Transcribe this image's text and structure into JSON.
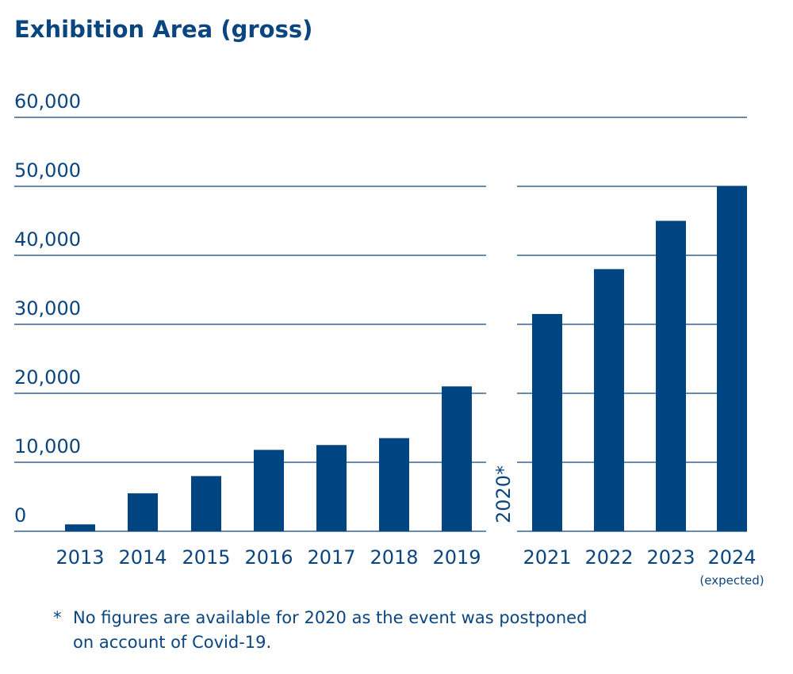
{
  "chart_data": {
    "type": "bar",
    "title": "Exhibition Area (gross)",
    "categories": [
      "2013",
      "2014",
      "2015",
      "2016",
      "2017",
      "2018",
      "2019",
      "2021",
      "2022",
      "2023",
      "2024"
    ],
    "values": [
      1000,
      5500,
      8000,
      11800,
      12500,
      13500,
      21000,
      31500,
      38000,
      45000,
      50000
    ],
    "category_notes": {
      "2024": "(expected)"
    },
    "yticks": [
      "0",
      "10,000",
      "20,000",
      "30,000",
      "40,000",
      "50,000",
      "60,000"
    ],
    "ylim": [
      0,
      60000
    ],
    "gap_label": "2020*",
    "footnote_marker": "*",
    "footnote_line1": "No figures are available for 2020 as the event was postponed",
    "footnote_line2": "on account of Covid-19.",
    "grid": true,
    "bar_color": "#004481",
    "grid_color": "#0a4580"
  }
}
